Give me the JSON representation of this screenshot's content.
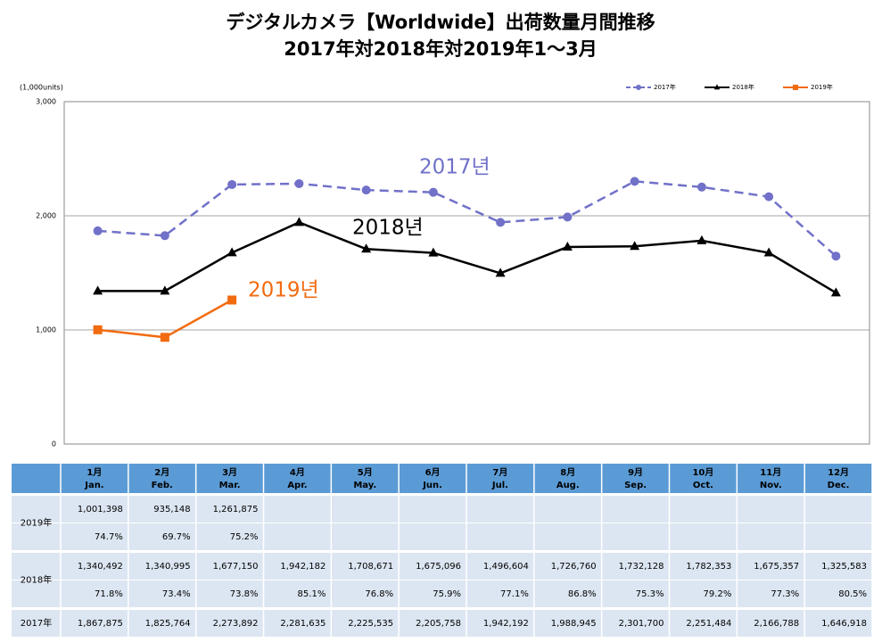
{
  "chart_data": {
    "type": "line",
    "title": "デジタルカメラ【Worldwide】出荷数量月間推移",
    "subtitle": "2017年対2018年対2019年1～3月",
    "y_label": "(1,000units)",
    "ylim": [
      0,
      3000
    ],
    "yticks": [
      0,
      {
        "value": 1000,
        "label": "1,000"
      },
      {
        "value": 2000,
        "label": "2,000"
      },
      {
        "value": 3000,
        "label": "3,000"
      }
    ],
    "grid": true,
    "legend": "top-right",
    "series": [
      {
        "name": "2017年",
        "color": "#7171c9",
        "dash": true,
        "marker": "circle",
        "values": [
          1867.875,
          1825.764,
          2273.892,
          2281.635,
          2225.535,
          2205.758,
          1942.192,
          1988.945,
          2301.7,
          2251.484,
          2166.788,
          1646.918
        ]
      },
      {
        "name": "2018年",
        "color": "#000000",
        "dash": false,
        "marker": "triangle",
        "values": [
          1340.492,
          1340.995,
          1677.15,
          1942.182,
          1708.671,
          1675.096,
          1496.604,
          1726.76,
          1732.128,
          1782.353,
          1675.357,
          1325.583
        ]
      },
      {
        "name": "2019年",
        "color": "#f26b10",
        "dash": false,
        "marker": "square",
        "values": [
          1001.398,
          935.148,
          1261.875
        ]
      }
    ],
    "annotations": [
      {
        "text": "2017년",
        "color": "#7171c9"
      },
      {
        "text": "2018년",
        "color": "#000000"
      },
      {
        "text": "2019년",
        "color": "#f26b10"
      }
    ]
  },
  "table": {
    "header": [
      {
        "jp": "1月",
        "en": "Jan."
      },
      {
        "jp": "2月",
        "en": "Feb."
      },
      {
        "jp": "3月",
        "en": "Mar."
      },
      {
        "jp": "4月",
        "en": "Apr."
      },
      {
        "jp": "5月",
        "en": "May."
      },
      {
        "jp": "6月",
        "en": "Jun."
      },
      {
        "jp": "7月",
        "en": "Jul."
      },
      {
        "jp": "8月",
        "en": "Aug."
      },
      {
        "jp": "9月",
        "en": "Sep."
      },
      {
        "jp": "10月",
        "en": "Oct."
      },
      {
        "jp": "11月",
        "en": "Nov."
      },
      {
        "jp": "12月",
        "en": "Dec."
      }
    ],
    "rows": [
      {
        "label": "2019年",
        "units": [
          "1,001,398",
          "935,148",
          "1,261,875"
        ],
        "ratios": [
          "74.7%",
          "69.7%",
          "75.2%"
        ]
      },
      {
        "label": "2018年",
        "units": [
          "1,340,492",
          "1,340,995",
          "1,677,150",
          "1,942,182",
          "1,708,671",
          "1,675,096",
          "1,496,604",
          "1,726,760",
          "1,732,128",
          "1,782,353",
          "1,675,357",
          "1,325,583"
        ],
        "ratios": [
          "71.8%",
          "73.4%",
          "73.8%",
          "85.1%",
          "76.8%",
          "75.9%",
          "77.1%",
          "86.8%",
          "75.3%",
          "79.2%",
          "77.3%",
          "80.5%"
        ]
      },
      {
        "label": "2017年",
        "units": [
          "1,867,875",
          "1,825,764",
          "2,273,892",
          "2,281,635",
          "2,225,535",
          "2,205,758",
          "1,942,192",
          "1,988,945",
          "2,301,700",
          "2,251,484",
          "2,166,788",
          "1,646,918"
        ]
      }
    ]
  }
}
